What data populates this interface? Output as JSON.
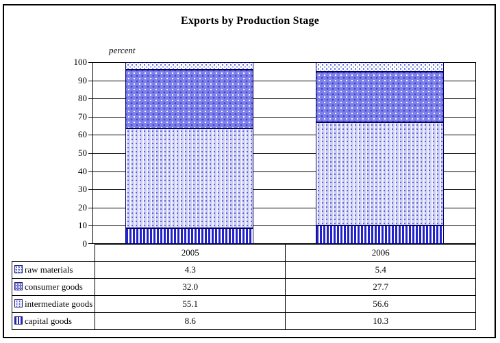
{
  "title": "Exports by Production Stage",
  "colors": {
    "stripe_blue": "#2222cc",
    "consumer_blue": "#7f81ea",
    "intermediate_lavender": "#cdcef5",
    "dot_blue": "#4d5fd9",
    "line_black": "#000000"
  },
  "chart_data": {
    "type": "bar",
    "stacked": true,
    "title": "Exports by Production Stage",
    "ylabel": "percent",
    "categories": [
      "2005",
      "2006"
    ],
    "series": [
      {
        "name": "raw materials",
        "values": [
          4.3,
          5.4
        ]
      },
      {
        "name": "consumer goods",
        "values": [
          32.0,
          27.7
        ]
      },
      {
        "name": "intermediate goods",
        "values": [
          55.1,
          56.6
        ]
      },
      {
        "name": "capital goods",
        "values": [
          8.6,
          10.3
        ]
      }
    ],
    "ylim": [
      0,
      100
    ],
    "yticks": [
      100,
      90,
      80,
      70,
      60,
      50,
      40,
      30,
      20,
      10,
      0
    ],
    "grid": true,
    "legend_position": "table-below"
  },
  "table": {
    "header": [
      "2005",
      "2006"
    ],
    "rows": [
      {
        "label": "raw materials",
        "values": [
          "4.3",
          "5.4"
        ]
      },
      {
        "label": "consumer goods",
        "values": [
          "32.0",
          "27.7"
        ]
      },
      {
        "label": "intermediate goods",
        "values": [
          "55.1",
          "56.6"
        ]
      },
      {
        "label": "capital goods",
        "values": [
          "8.6",
          "10.3"
        ]
      }
    ]
  }
}
